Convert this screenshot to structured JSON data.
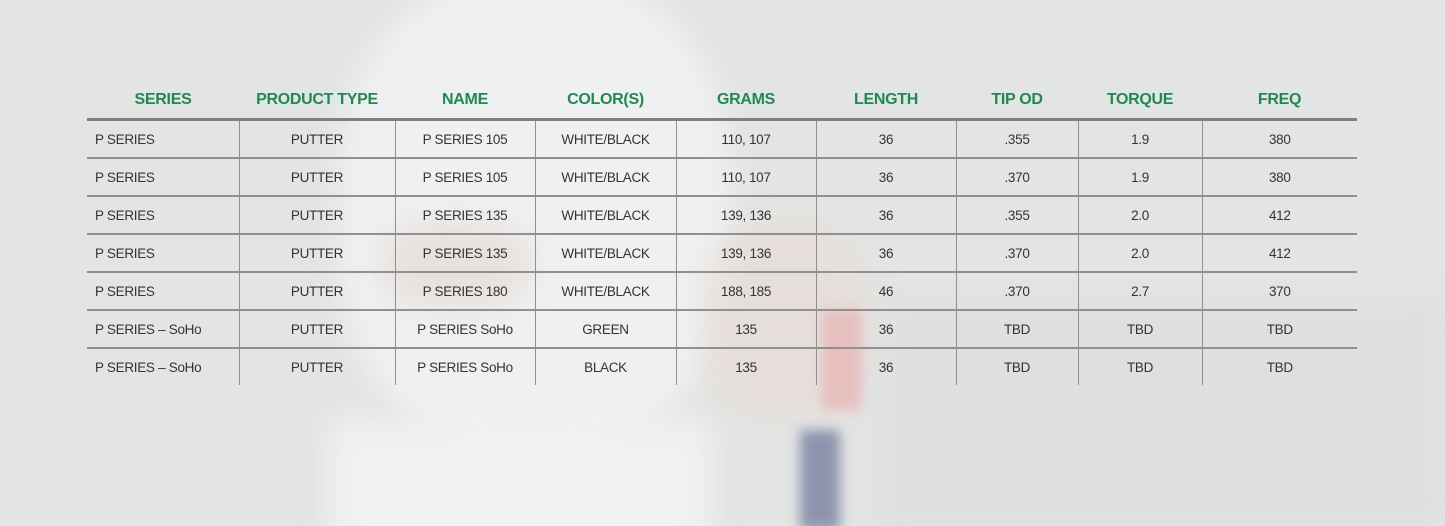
{
  "colors": {
    "header_text": "#1f8a50",
    "cell_text": "#333333",
    "rule": "#8e9091",
    "background": "#e3e5e4"
  },
  "columns": [
    "SERIES",
    "PRODUCT TYPE",
    "NAME",
    "COLOR(S)",
    "GRAMS",
    "LENGTH",
    "TIP OD",
    "TORQUE",
    "FREQ"
  ],
  "rows": [
    [
      "P SERIES",
      "PUTTER",
      "P SERIES 105",
      "WHITE/BLACK",
      "110, 107",
      "36",
      ".355",
      "1.9",
      "380"
    ],
    [
      "P SERIES",
      "PUTTER",
      "P SERIES 105",
      "WHITE/BLACK",
      "110, 107",
      "36",
      ".370",
      "1.9",
      "380"
    ],
    [
      "P SERIES",
      "PUTTER",
      "P SERIES 135",
      "WHITE/BLACK",
      "139, 136",
      "36",
      ".355",
      "2.0",
      "412"
    ],
    [
      "P SERIES",
      "PUTTER",
      "P SERIES 135",
      "WHITE/BLACK",
      "139, 136",
      "36",
      ".370",
      "2.0",
      "412"
    ],
    [
      "P SERIES",
      "PUTTER",
      "P SERIES 180",
      "WHITE/BLACK",
      "188, 185",
      "46",
      ".370",
      "2.7",
      "370"
    ],
    [
      "P SERIES – SoHo",
      "PUTTER",
      "P SERIES SoHo",
      "GREEN",
      "135",
      "36",
      "TBD",
      "TBD",
      "TBD"
    ],
    [
      "P SERIES – SoHo",
      "PUTTER",
      "P SERIES SoHo",
      "BLACK",
      "135",
      "36",
      "TBD",
      "TBD",
      "TBD"
    ]
  ]
}
